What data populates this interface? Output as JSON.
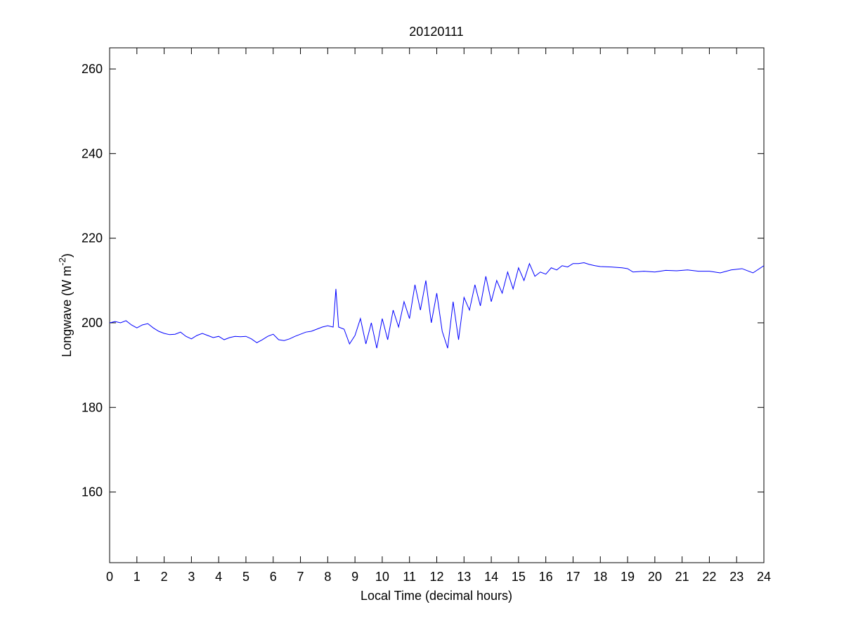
{
  "chart_data": {
    "type": "line",
    "title": "20120111",
    "xlabel": "Local Time (decimal hours)",
    "ylabel_parts": [
      "Longwave (W m",
      "-2",
      ")"
    ],
    "x": [
      0,
      0.2,
      0.4,
      0.6,
      0.8,
      1.0,
      1.2,
      1.4,
      1.6,
      1.8,
      2.0,
      2.2,
      2.4,
      2.6,
      2.8,
      3.0,
      3.2,
      3.4,
      3.6,
      3.8,
      4.0,
      4.2,
      4.4,
      4.6,
      4.8,
      5.0,
      5.2,
      5.4,
      5.6,
      5.8,
      6.0,
      6.2,
      6.4,
      6.6,
      6.8,
      7.0,
      7.2,
      7.4,
      7.6,
      7.8,
      8.0,
      8.2,
      8.3,
      8.4,
      8.6,
      8.8,
      9.0,
      9.2,
      9.4,
      9.6,
      9.8,
      10.0,
      10.2,
      10.4,
      10.6,
      10.8,
      11.0,
      11.2,
      11.4,
      11.6,
      11.8,
      12.0,
      12.2,
      12.4,
      12.6,
      12.8,
      13.0,
      13.2,
      13.4,
      13.6,
      13.8,
      14.0,
      14.2,
      14.4,
      14.6,
      14.8,
      15.0,
      15.2,
      15.4,
      15.6,
      15.8,
      16.0,
      16.2,
      16.4,
      16.6,
      16.8,
      17.0,
      17.2,
      17.4,
      17.6,
      17.8,
      18.0,
      18.4,
      18.8,
      19.0,
      19.2,
      19.6,
      20.0,
      20.4,
      20.8,
      21.2,
      21.6,
      22.0,
      22.4,
      22.8,
      23.2,
      23.6,
      24.0
    ],
    "series": [
      {
        "name": "Longwave",
        "color": "#0000ff",
        "values": [
          200,
          200.3,
          200,
          200.5,
          199.5,
          198.8,
          199.5,
          199.8,
          198.8,
          198,
          197.5,
          197.2,
          197.3,
          197.8,
          196.8,
          196.2,
          197,
          197.5,
          197,
          196.5,
          196.8,
          196,
          196.5,
          196.8,
          196.7,
          196.8,
          196.2,
          195.3,
          196,
          196.8,
          197.3,
          196,
          195.8,
          196.2,
          196.8,
          197.3,
          197.8,
          198,
          198.5,
          199,
          199.3,
          199,
          208,
          199,
          198.5,
          195,
          197,
          201,
          195,
          200,
          194,
          201,
          196,
          203,
          199,
          205,
          201,
          209,
          203,
          210,
          200,
          207,
          198,
          194,
          205,
          196,
          206,
          203,
          209,
          204,
          211,
          205,
          210,
          207,
          212,
          208,
          213,
          210,
          214,
          211,
          212,
          211.5,
          213,
          212.5,
          213.5,
          213.2,
          214,
          214,
          214.2,
          213.8,
          213.5,
          213.3,
          213.2,
          213,
          212.8,
          212,
          212.2,
          212,
          212.4,
          212.3,
          212.5,
          212.2,
          212.2,
          211.8,
          212.5,
          212.8,
          211.8,
          213.5
        ]
      }
    ],
    "xlim": [
      0,
      24
    ],
    "xticks": [
      0,
      1,
      2,
      3,
      4,
      5,
      6,
      7,
      8,
      9,
      10,
      11,
      12,
      13,
      14,
      15,
      16,
      17,
      18,
      19,
      20,
      21,
      22,
      23,
      24
    ],
    "ylim": [
      143.3,
      265
    ],
    "yticks": [
      160,
      180,
      200,
      220,
      240,
      260
    ],
    "grid": false
  }
}
